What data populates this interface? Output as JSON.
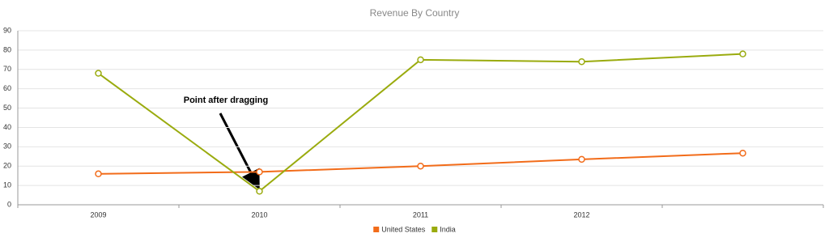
{
  "chart_data": {
    "type": "line",
    "title": "Revenue By Country",
    "categories": [
      "2009",
      "2010",
      "2011",
      "2012",
      null
    ],
    "series": [
      {
        "name": "United States",
        "color": "#f26c1a",
        "values": [
          16,
          17,
          20,
          23.5,
          26.7
        ]
      },
      {
        "name": "India",
        "color": "#9aab0e",
        "values": [
          68,
          7,
          75,
          74,
          78
        ]
      }
    ],
    "ylim": [
      0,
      90
    ],
    "yticks": [
      0,
      10,
      20,
      30,
      40,
      50,
      60,
      70,
      80,
      90
    ],
    "grid": true,
    "annotation": "Point after dragging",
    "legend": "bottom"
  }
}
